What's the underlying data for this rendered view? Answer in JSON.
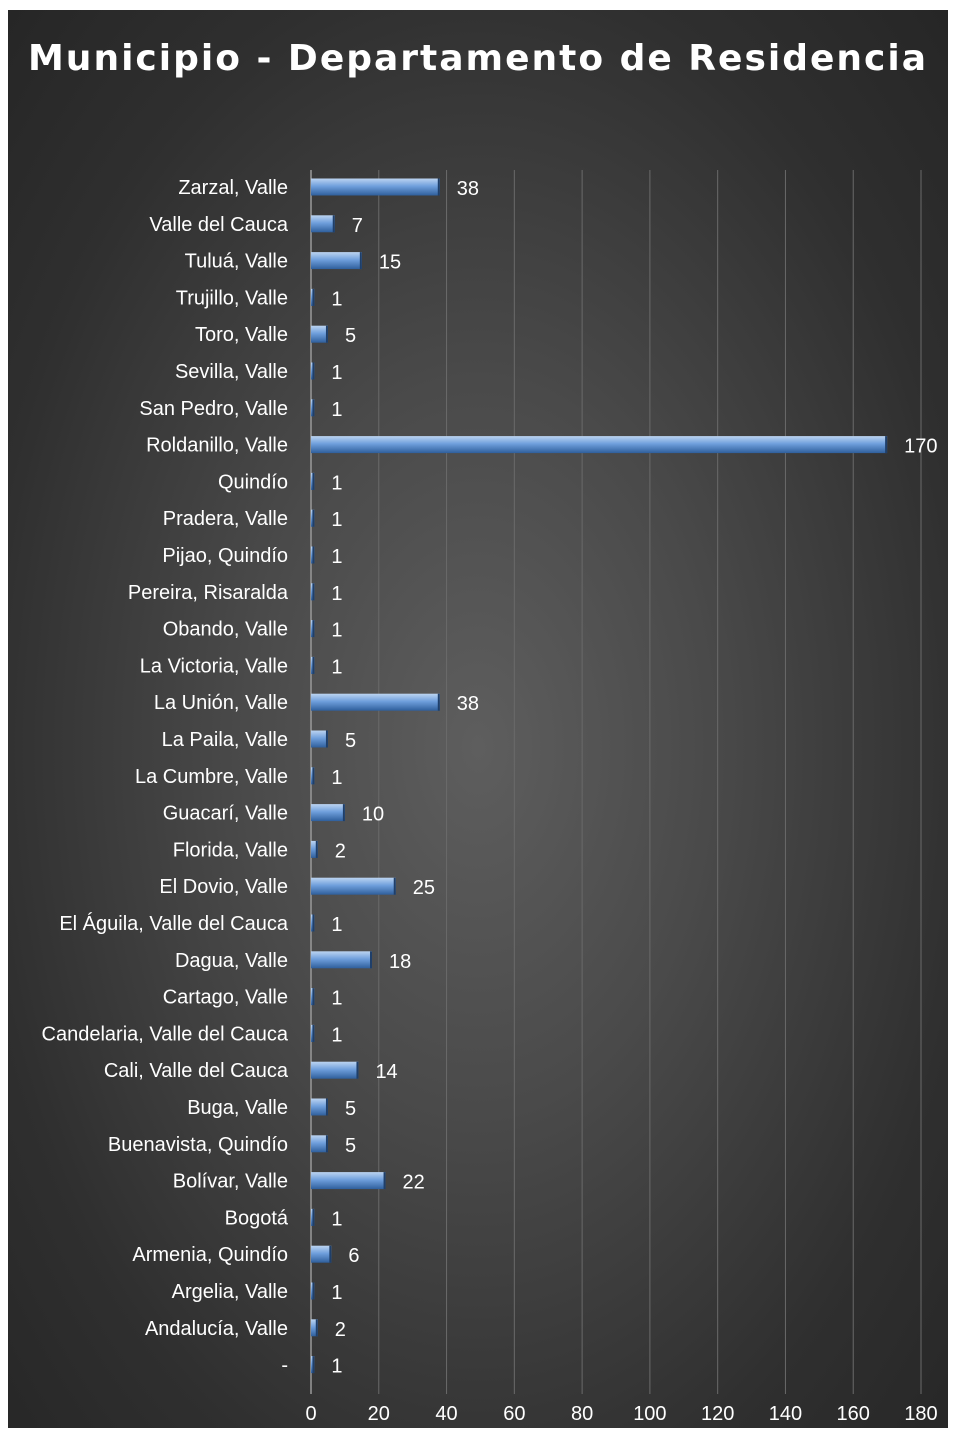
{
  "chart_data": {
    "type": "bar",
    "orientation": "horizontal",
    "title": "Municipio - Departamento de Residencia",
    "categories": [
      "Zarzal, Valle",
      "Valle del Cauca",
      "Tuluá, Valle",
      "Trujillo, Valle",
      "Toro, Valle",
      "Sevilla, Valle",
      "San Pedro, Valle",
      "Roldanillo, Valle",
      "Quindío",
      "Pradera, Valle",
      "Pijao, Quindío",
      "Pereira, Risaralda",
      "Obando, Valle",
      "La Victoria, Valle",
      "La Unión, Valle",
      "La Paila, Valle",
      "La Cumbre, Valle",
      "Guacarí, Valle",
      "Florida, Valle",
      "El Dovio, Valle",
      "El Águila, Valle del Cauca",
      "Dagua, Valle",
      "Cartago, Valle",
      "Candelaria, Valle del Cauca",
      "Cali, Valle del Cauca",
      "Buga, Valle",
      "Buenavista, Quindío",
      "Bolívar, Valle",
      "Bogotá",
      "Armenia, Quindío",
      "Argelia, Valle",
      "Andalucía, Valle",
      "-"
    ],
    "values": [
      38,
      7,
      15,
      1,
      5,
      1,
      1,
      170,
      1,
      1,
      1,
      1,
      1,
      1,
      38,
      5,
      1,
      10,
      2,
      25,
      1,
      18,
      1,
      1,
      14,
      5,
      5,
      22,
      1,
      6,
      1,
      2,
      1
    ],
    "data_labels": true,
    "xlim": [
      0,
      180
    ],
    "xticks": [
      0,
      20,
      40,
      60,
      80,
      100,
      120,
      140,
      160,
      180
    ],
    "grid": "vertical",
    "legend": "none",
    "colors": {
      "bar_top": "#bcd4f1",
      "bar_mid": "#6f9fdc",
      "bar_bottom": "#2f5f9c",
      "gridline": "#6a6a6a",
      "text": "#ffffff"
    }
  }
}
